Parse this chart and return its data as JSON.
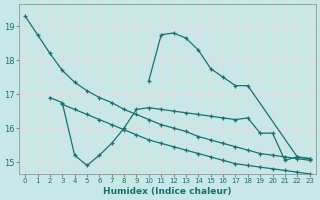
{
  "xlabel": "Humidex (Indice chaleur)",
  "line_color": "#1a7070",
  "bg_color": "#c8e8e8",
  "grid_color": "#e8d8d8",
  "ylim": [
    14.65,
    19.65
  ],
  "yticks": [
    15,
    16,
    17,
    18,
    19
  ],
  "xlim": [
    -0.5,
    23.5
  ],
  "line1_x": [
    0,
    1,
    2,
    3,
    4,
    5,
    6,
    7,
    8,
    9,
    10,
    11,
    12,
    13,
    14,
    15,
    16,
    17,
    18,
    19,
    20,
    21,
    22,
    23
  ],
  "line1_y": [
    19.3,
    18.75,
    18.2,
    17.7,
    17.35,
    17.1,
    16.9,
    16.75,
    16.55,
    16.4,
    16.25,
    16.1,
    16.0,
    15.9,
    15.75,
    15.65,
    15.55,
    15.45,
    15.35,
    15.25,
    15.2,
    15.15,
    15.1,
    15.05
  ],
  "line2_x": [
    10,
    11,
    12,
    13,
    14,
    15,
    16,
    17,
    18,
    22,
    23
  ],
  "line2_y": [
    17.4,
    18.75,
    18.8,
    18.65,
    18.3,
    17.75,
    17.5,
    17.25,
    17.25,
    15.15,
    15.1
  ],
  "line3_x": [
    2,
    3,
    4,
    5,
    6,
    7,
    8,
    9,
    10,
    11,
    12,
    13,
    14,
    15,
    16,
    17,
    18,
    19,
    20,
    21,
    22,
    23
  ],
  "line3_y": [
    16.9,
    16.75,
    15.2,
    14.9,
    15.2,
    15.55,
    16.0,
    16.55,
    16.6,
    16.55,
    16.5,
    16.45,
    16.4,
    16.35,
    16.3,
    16.25,
    16.3,
    15.85,
    15.85,
    15.05,
    15.15,
    15.1
  ],
  "line4_x": [
    3,
    4,
    5,
    6,
    7,
    8,
    9,
    10,
    11,
    12,
    13,
    14,
    15,
    16,
    17,
    18,
    19,
    20,
    21,
    22,
    23
  ],
  "line4_y": [
    16.7,
    16.55,
    16.4,
    16.25,
    16.1,
    15.95,
    15.8,
    15.65,
    15.55,
    15.45,
    15.35,
    15.25,
    15.15,
    15.05,
    14.95,
    14.9,
    14.85,
    14.8,
    14.75,
    14.7,
    14.65
  ]
}
